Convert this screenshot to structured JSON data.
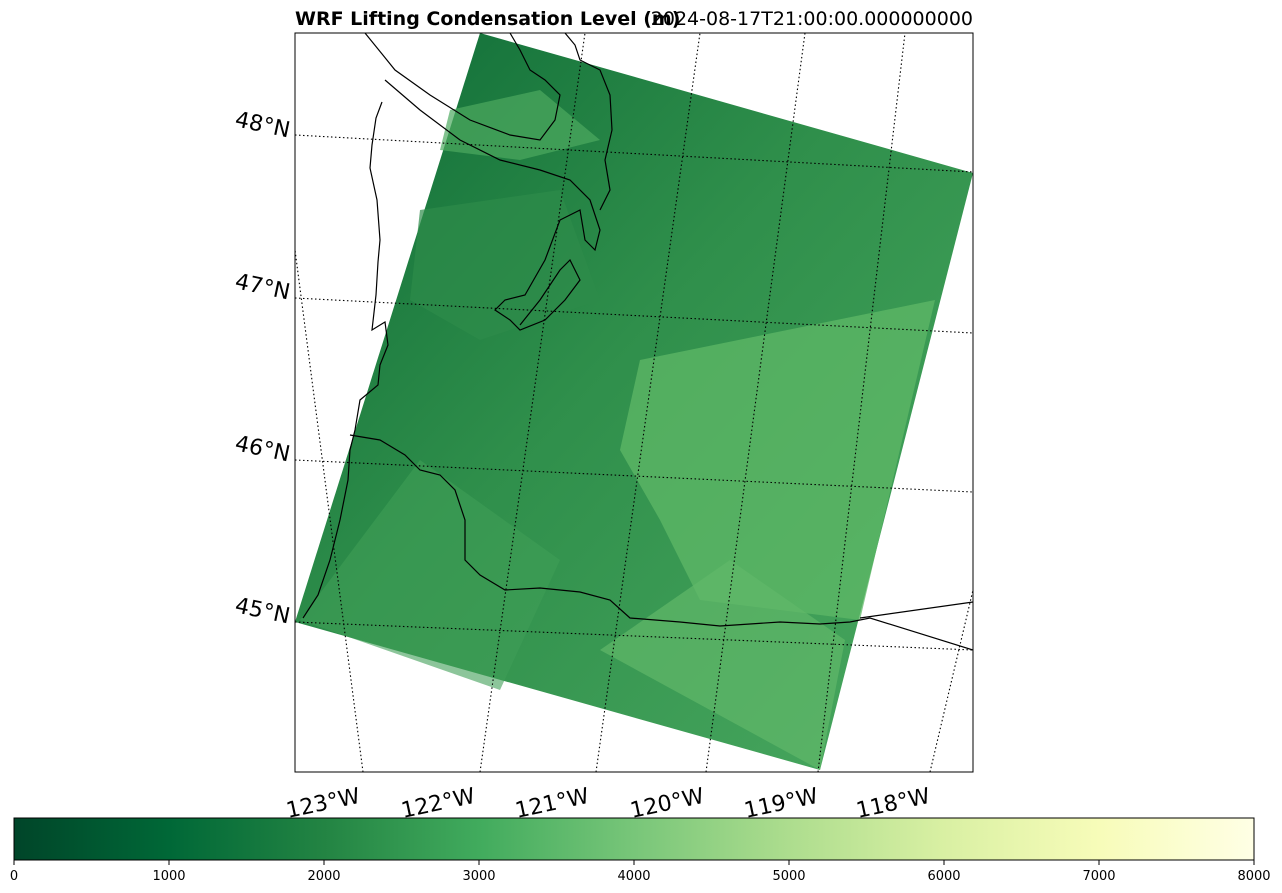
{
  "title": "WRF Lifting Condensation Level (m)",
  "timestamp": "2024-08-17T21:00:00.000000000",
  "latitude_labels": [
    "48°N",
    "47°N",
    "46°N",
    "45°N"
  ],
  "longitude_labels": [
    "123°W",
    "122°W",
    "121°W",
    "120°W",
    "119°W",
    "118°W"
  ],
  "colorbar": {
    "colormap": "YlGn_r",
    "min": 0,
    "max": 8000,
    "tick_labels": [
      "0",
      "1000",
      "2000",
      "3000",
      "4000",
      "5000",
      "6000",
      "7000",
      "8000"
    ],
    "colors": [
      "#004529",
      "#006837",
      "#238443",
      "#41ab5d",
      "#78c679",
      "#addd8e",
      "#d9f0a3",
      "#f7fcb9",
      "#ffffe5"
    ]
  },
  "map": {
    "field_colors": {
      "dark": "#0d6a36",
      "mid": "#3b9e55",
      "light": "#6cc070"
    },
    "coastline_color": "#000000",
    "gridline_style": "dotted"
  }
}
